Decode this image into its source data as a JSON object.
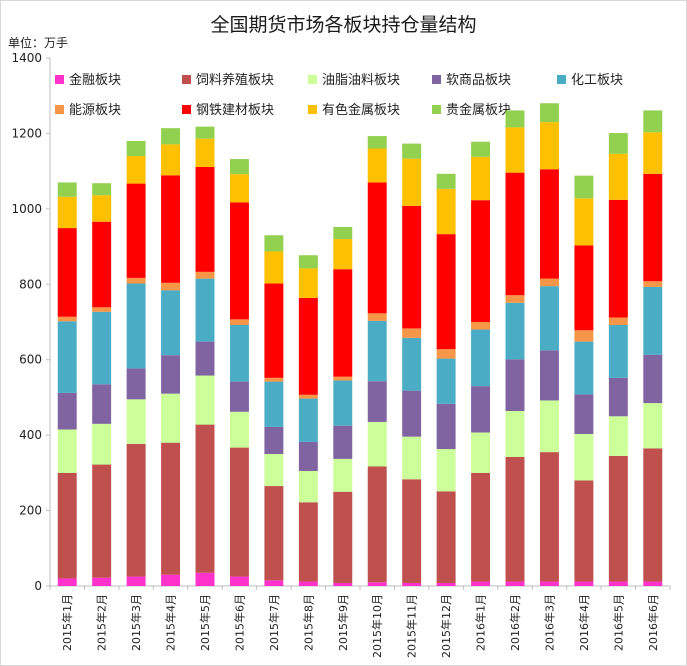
{
  "colors": {
    "金融板块": "#ff33cc",
    "饲料养殖板块": "#c0504d",
    "油脂油料板块": "#ccff99",
    "软商品板块": "#8064a2",
    "化工板块": "#4bacc6",
    "能源板块": "#f79646",
    "钢铁建材板块": "#ff0000",
    "有色金属板块": "#ffc000",
    "贵金属板块": "#92d050"
  },
  "chart_data": {
    "type": "bar",
    "stacked": true,
    "title": "全国期货市场各板块持仓量结构",
    "unit": "单位：万手",
    "ylim": [
      0,
      1400
    ],
    "yticks": [
      0,
      200,
      400,
      600,
      800,
      1000,
      1200,
      1400
    ],
    "grid": false,
    "legend_position": "top",
    "categories": [
      "2015年1月",
      "2015年2月",
      "2015年3月",
      "2015年4月",
      "2015年5月",
      "2015年6月",
      "2015年7月",
      "2015年8月",
      "2015年9月",
      "2015年10月",
      "2015年11月",
      "2015年12月",
      "2016年1月",
      "2016年2月",
      "2016年3月",
      "2016年4月",
      "2016年5月",
      "2016年6月"
    ],
    "series": [
      {
        "name": "金融板块",
        "values": [
          20,
          22,
          25,
          30,
          35,
          25,
          15,
          12,
          8,
          10,
          8,
          8,
          12,
          12,
          12,
          12,
          12,
          12
        ]
      },
      {
        "name": "饲料养殖板块",
        "values": [
          280,
          300,
          352,
          350,
          393,
          342,
          250,
          210,
          242,
          307,
          275,
          243,
          288,
          330,
          343,
          268,
          333,
          353
        ]
      },
      {
        "name": "油脂油料板块",
        "values": [
          115,
          108,
          118,
          130,
          130,
          95,
          85,
          83,
          87,
          118,
          113,
          112,
          107,
          122,
          137,
          123,
          105,
          120
        ]
      },
      {
        "name": "软商品板块",
        "values": [
          97,
          105,
          82,
          102,
          90,
          80,
          72,
          77,
          88,
          108,
          122,
          120,
          123,
          137,
          133,
          105,
          102,
          128
        ]
      },
      {
        "name": "化工板块",
        "values": [
          190,
          192,
          225,
          172,
          167,
          150,
          120,
          115,
          120,
          160,
          140,
          120,
          150,
          150,
          170,
          140,
          140,
          180
        ]
      },
      {
        "name": "能源板块",
        "values": [
          12,
          12,
          15,
          20,
          18,
          15,
          10,
          10,
          10,
          20,
          25,
          25,
          20,
          20,
          20,
          30,
          20,
          15
        ]
      },
      {
        "name": "钢铁建材板块",
        "values": [
          235,
          227,
          250,
          285,
          278,
          310,
          250,
          257,
          285,
          347,
          325,
          305,
          323,
          325,
          290,
          225,
          312,
          285
        ]
      },
      {
        "name": "有色金属板块",
        "values": [
          83,
          70,
          73,
          82,
          75,
          75,
          85,
          78,
          80,
          90,
          125,
          120,
          115,
          120,
          125,
          125,
          122,
          110
        ]
      },
      {
        "name": "贵金属板块",
        "values": [
          38,
          32,
          40,
          43,
          32,
          40,
          43,
          35,
          32,
          33,
          40,
          40,
          40,
          45,
          50,
          60,
          55,
          58
        ]
      }
    ]
  }
}
